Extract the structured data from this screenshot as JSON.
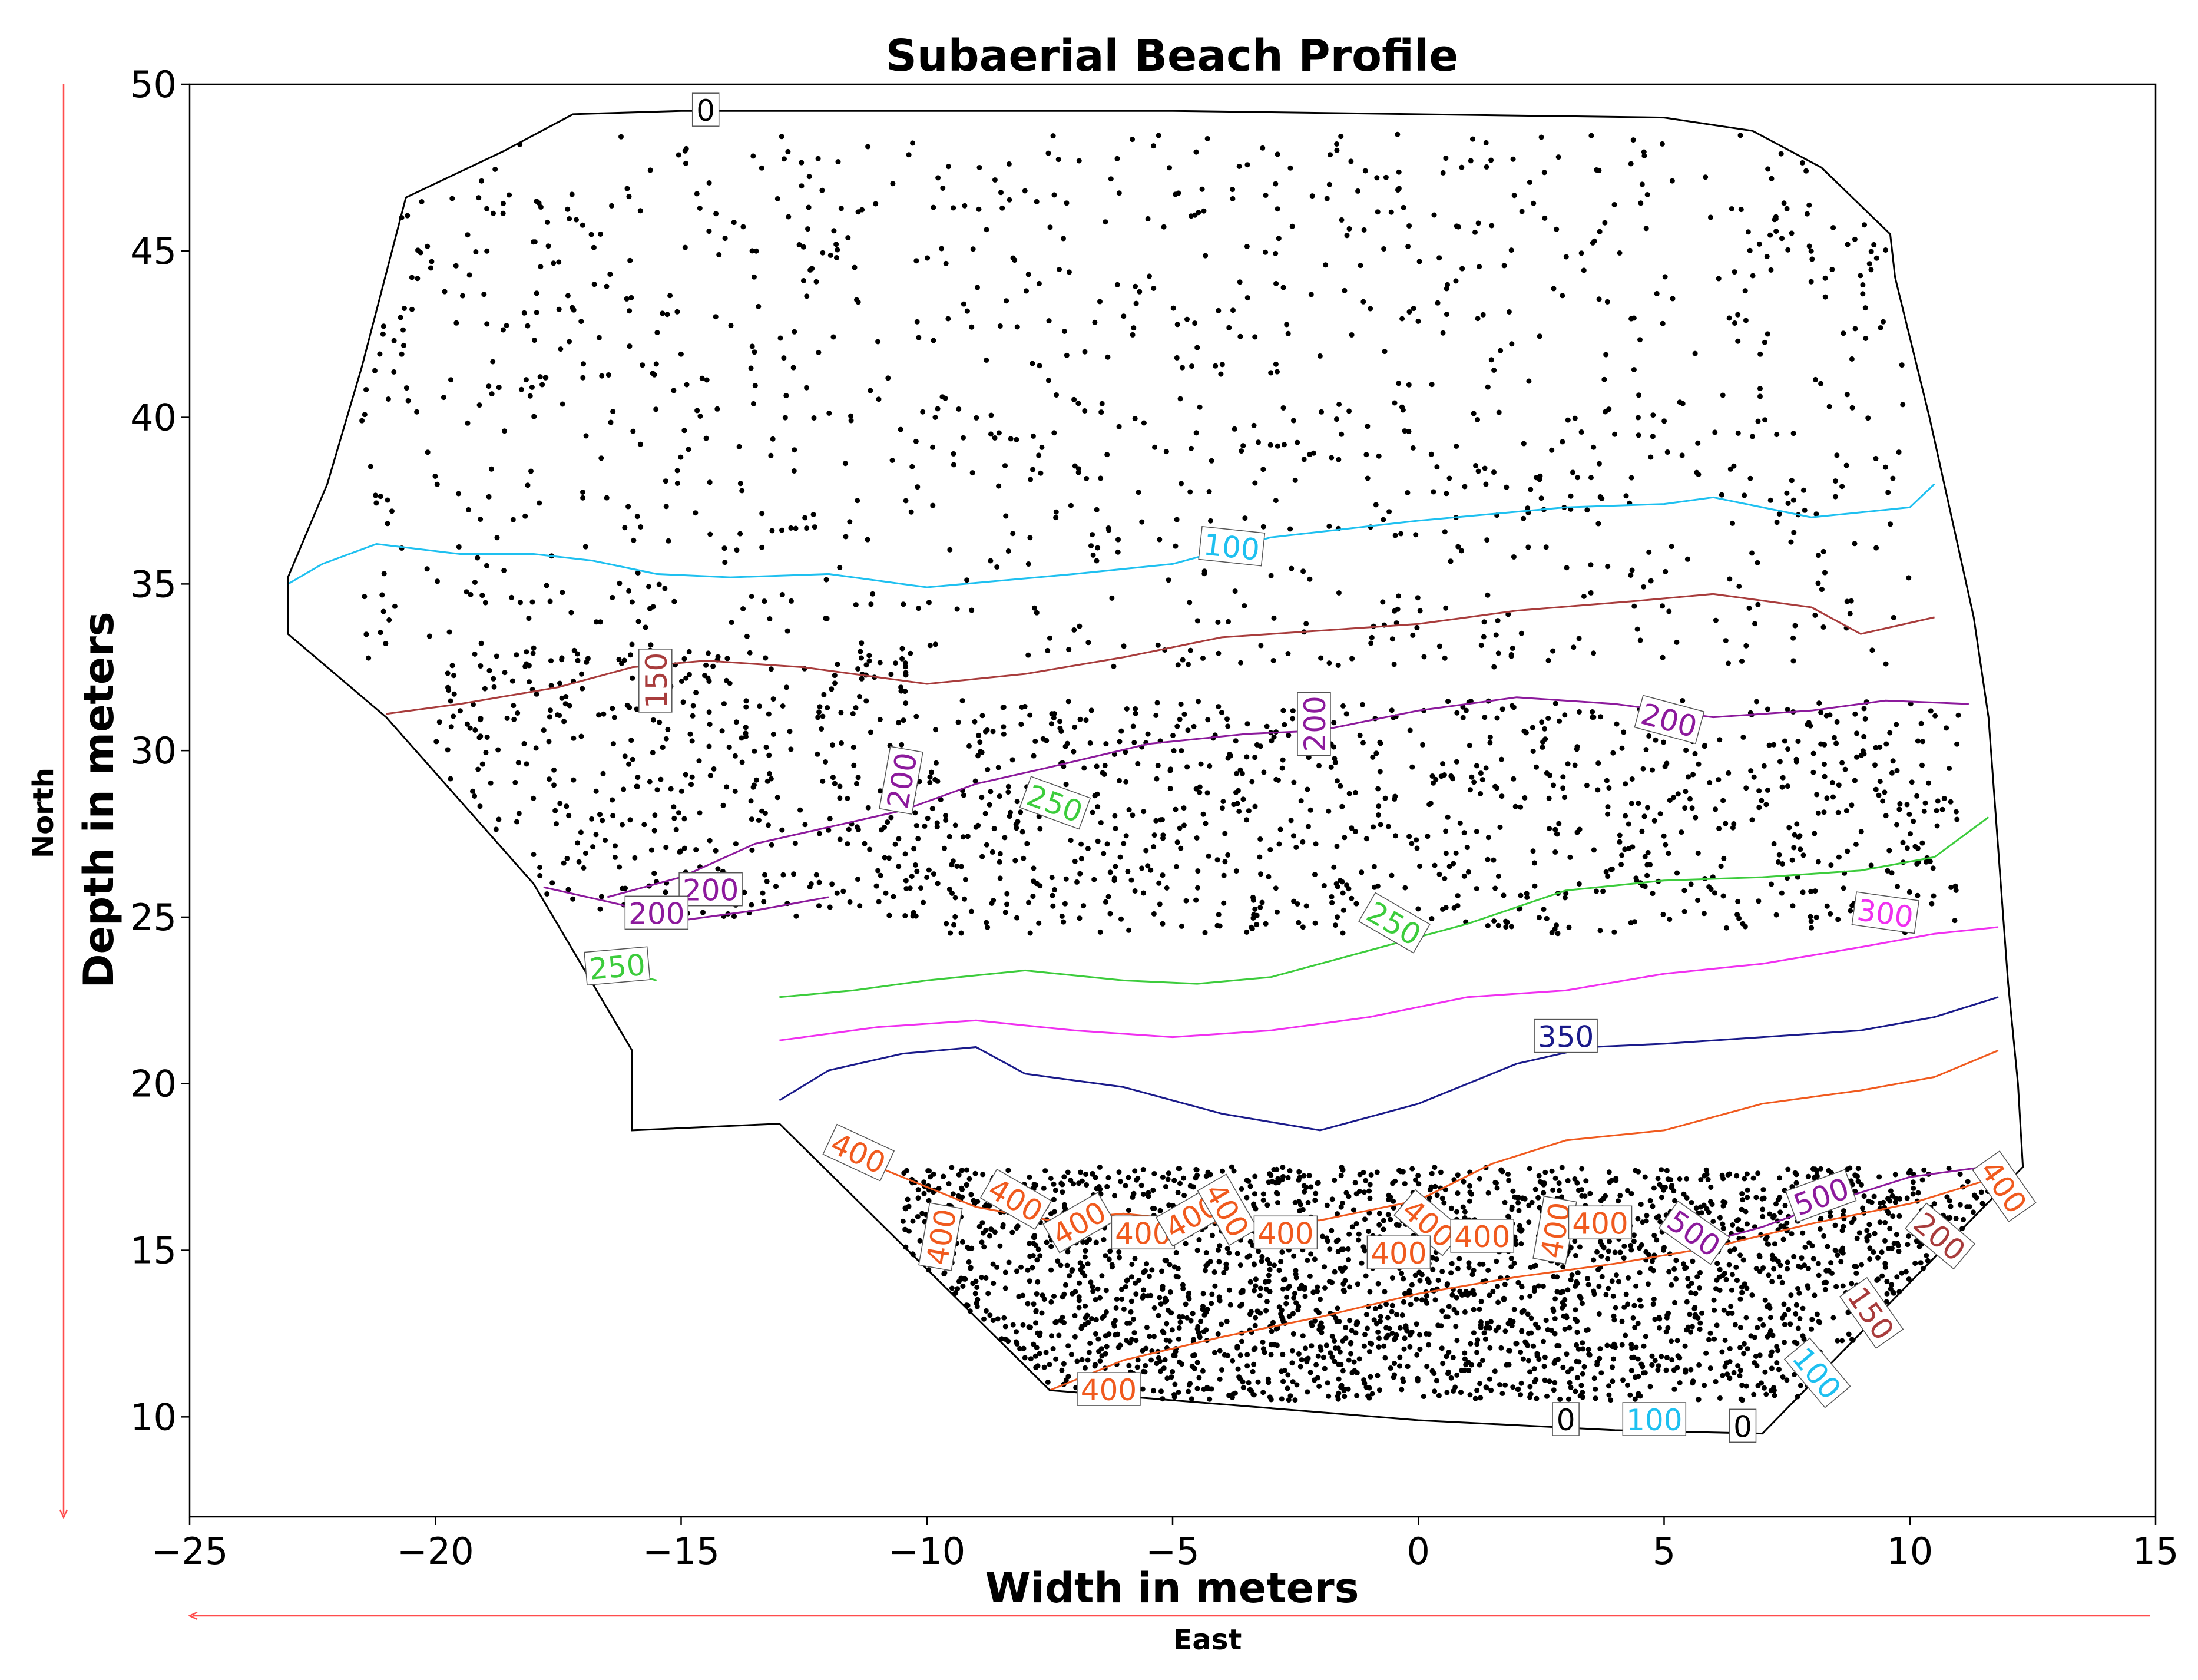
{
  "chart_data": {
    "type": "contour",
    "title": "Subaerial Beach Profile",
    "xlabel": "Width in meters",
    "ylabel": "Depth in meters",
    "xlim": [
      -25,
      15
    ],
    "ylim": [
      7,
      50
    ],
    "xticks": [
      -25,
      -20,
      -15,
      -10,
      -5,
      0,
      5,
      10,
      15
    ],
    "yticks": [
      10,
      15,
      20,
      25,
      30,
      35,
      40,
      45,
      50
    ],
    "xtick_labels": [
      "−25",
      "−20",
      "−15",
      "−10",
      "−5",
      "0",
      "5",
      "10",
      "15"
    ],
    "ytick_labels": [
      "10",
      "15",
      "20",
      "25",
      "30",
      "35",
      "40",
      "45",
      "50"
    ],
    "direction_labels": {
      "east": "East",
      "north": "North"
    },
    "colors": {
      "boundary": "#000000",
      "c100": "#1ec0f0",
      "c150": "#a83c3c",
      "c200": "#8c1a9c",
      "c250": "#3ccc3c",
      "c300": "#f030f0",
      "c350": "#1a1a8a",
      "c400": "#f05a1e",
      "arrows": "#ff4d4d"
    },
    "boundary": {
      "level": 0,
      "points": [
        [
          -23,
          33.5
        ],
        [
          -23,
          35.2
        ],
        [
          -22.2,
          38
        ],
        [
          -21.5,
          41.5
        ],
        [
          -20.6,
          46.6
        ],
        [
          -18.6,
          48
        ],
        [
          -17.2,
          49.1
        ],
        [
          -15,
          49.2
        ],
        [
          -5,
          49.2
        ],
        [
          5,
          49
        ],
        [
          6.8,
          48.6
        ],
        [
          8.2,
          47.5
        ],
        [
          9.6,
          45.5
        ],
        [
          9.7,
          44.2
        ],
        [
          10.4,
          40
        ],
        [
          11,
          36
        ],
        [
          11.3,
          34
        ],
        [
          11.6,
          31
        ],
        [
          11.8,
          27
        ],
        [
          11.9,
          25
        ],
        [
          12,
          23
        ],
        [
          12.2,
          20
        ],
        [
          12.3,
          17.5
        ],
        [
          7,
          9.5
        ],
        [
          4,
          9.6
        ],
        [
          0,
          9.9
        ],
        [
          -7.5,
          10.8
        ],
        [
          -13,
          18.8
        ],
        [
          -16,
          18.6
        ],
        [
          -16,
          21
        ],
        [
          -18,
          26
        ],
        [
          -21,
          31
        ],
        [
          -23,
          33.5
        ]
      ]
    },
    "contours": [
      {
        "level": 100,
        "color_key": "c100",
        "points": [
          [
            -23,
            35
          ],
          [
            -22.3,
            35.6
          ],
          [
            -21.2,
            36.2
          ],
          [
            -19.5,
            35.9
          ],
          [
            -18,
            35.9
          ],
          [
            -16.8,
            35.7
          ],
          [
            -15.5,
            35.3
          ],
          [
            -14,
            35.2
          ],
          [
            -12,
            35.3
          ],
          [
            -10,
            34.9
          ],
          [
            -7,
            35.3
          ],
          [
            -5,
            35.6
          ],
          [
            -3,
            36.4
          ],
          [
            0,
            36.9
          ],
          [
            3,
            37.3
          ],
          [
            5,
            37.4
          ],
          [
            6,
            37.6
          ],
          [
            8,
            37.0
          ],
          [
            10,
            37.3
          ],
          [
            10.5,
            38
          ]
        ]
      },
      {
        "level": 150,
        "color_key": "c150",
        "points": [
          [
            -21,
            31.1
          ],
          [
            -19.5,
            31.4
          ],
          [
            -17.5,
            31.9
          ],
          [
            -16,
            32.5
          ],
          [
            -14.5,
            32.7
          ],
          [
            -12.5,
            32.5
          ],
          [
            -10,
            32.0
          ],
          [
            -8,
            32.3
          ],
          [
            -6,
            32.8
          ],
          [
            -4,
            33.4
          ],
          [
            -2,
            33.6
          ],
          [
            0,
            33.8
          ],
          [
            2,
            34.2
          ],
          [
            4.5,
            34.5
          ],
          [
            6,
            34.7
          ],
          [
            8,
            34.3
          ],
          [
            9,
            33.5
          ],
          [
            10.5,
            34
          ]
        ]
      },
      {
        "level": 200,
        "color_key": "c200",
        "points": [
          [
            -16.5,
            25.6
          ],
          [
            -15,
            26.2
          ],
          [
            -13.5,
            27.2
          ],
          [
            -12,
            27.7
          ],
          [
            -10.5,
            28.2
          ],
          [
            -9,
            29
          ],
          [
            -7.5,
            29.5
          ],
          [
            -5.5,
            30.2
          ],
          [
            -3.5,
            30.5
          ],
          [
            -2,
            30.6
          ],
          [
            0,
            31.2
          ],
          [
            2,
            31.6
          ],
          [
            4,
            31.4
          ],
          [
            6,
            31.0
          ],
          [
            8,
            31.2
          ],
          [
            9.5,
            31.5
          ],
          [
            11.2,
            31.4
          ]
        ]
      },
      {
        "level": 200,
        "color_key": "c200",
        "points": [
          [
            -17.8,
            25.9
          ],
          [
            -16.3,
            25.4
          ],
          [
            -15,
            24.9
          ],
          [
            -13.5,
            25.2
          ],
          [
            -12,
            25.6
          ]
        ]
      },
      {
        "level": 250,
        "color_key": "c250",
        "points": [
          [
            -13,
            22.6
          ],
          [
            -11.5,
            22.8
          ],
          [
            -10,
            23.1
          ],
          [
            -8,
            23.4
          ],
          [
            -6,
            23.1
          ],
          [
            -4.5,
            23.0
          ],
          [
            -3,
            23.2
          ],
          [
            -1,
            24.0
          ],
          [
            1,
            24.8
          ],
          [
            3,
            25.8
          ],
          [
            5,
            26.1
          ],
          [
            7,
            26.2
          ],
          [
            9,
            26.4
          ],
          [
            10.5,
            26.8
          ],
          [
            11.6,
            28
          ]
        ]
      },
      {
        "level": 250,
        "color_key": "c250",
        "points": [
          [
            -16.5,
            23.5
          ],
          [
            -15.5,
            23.1
          ]
        ]
      },
      {
        "level": 300,
        "color_key": "c300",
        "points": [
          [
            -13,
            21.3
          ],
          [
            -11,
            21.7
          ],
          [
            -9,
            21.9
          ],
          [
            -7,
            21.6
          ],
          [
            -5,
            21.4
          ],
          [
            -3,
            21.6
          ],
          [
            -1,
            22.0
          ],
          [
            1,
            22.6
          ],
          [
            3,
            22.8
          ],
          [
            5,
            23.3
          ],
          [
            7,
            23.6
          ],
          [
            9,
            24.1
          ],
          [
            10.5,
            24.5
          ],
          [
            11.8,
            24.7
          ]
        ]
      },
      {
        "level": 350,
        "color_key": "c350",
        "points": [
          [
            -13,
            19.5
          ],
          [
            -12,
            20.4
          ],
          [
            -10.5,
            20.9
          ],
          [
            -9,
            21.1
          ],
          [
            -8,
            20.3
          ],
          [
            -6,
            19.9
          ],
          [
            -4,
            19.1
          ],
          [
            -2,
            18.6
          ],
          [
            0,
            19.4
          ],
          [
            2,
            20.6
          ],
          [
            3.5,
            21.1
          ],
          [
            5,
            21.2
          ],
          [
            7,
            21.4
          ],
          [
            9,
            21.6
          ],
          [
            10.5,
            22.0
          ],
          [
            11.8,
            22.6
          ]
        ]
      },
      {
        "level": 400,
        "color_key": "c400",
        "points": [
          [
            -11.5,
            17.8
          ],
          [
            -10.5,
            17.2
          ],
          [
            -9,
            16.3
          ],
          [
            -7.5,
            15.9
          ],
          [
            -6,
            16.1
          ],
          [
            -4,
            15.8
          ],
          [
            -2,
            15.9
          ],
          [
            0,
            16.5
          ],
          [
            1.5,
            17.6
          ],
          [
            3,
            18.3
          ],
          [
            5,
            18.6
          ],
          [
            7,
            19.4
          ],
          [
            9,
            19.8
          ],
          [
            10.5,
            20.2
          ],
          [
            11.8,
            21.0
          ]
        ]
      },
      {
        "level": 400,
        "color_key": "c400",
        "points": [
          [
            -7.5,
            10.8
          ],
          [
            -6,
            11.7
          ],
          [
            -4,
            12.4
          ],
          [
            -2,
            13.0
          ],
          [
            0,
            13.7
          ],
          [
            2,
            14.2
          ],
          [
            4,
            14.6
          ],
          [
            6,
            15.1
          ],
          [
            8,
            15.8
          ],
          [
            10,
            16.4
          ],
          [
            12,
            17.3
          ]
        ]
      },
      {
        "level": 500,
        "color_key": "c200",
        "points": [
          [
            5.5,
            15.1
          ],
          [
            7,
            15.7
          ],
          [
            8.5,
            16.5
          ],
          [
            10,
            17.2
          ],
          [
            11.5,
            17.5
          ]
        ]
      }
    ],
    "contour_labels": [
      {
        "text": "0",
        "x": -14.5,
        "y": 49.2,
        "color_key": "boundary",
        "angle": 0
      },
      {
        "text": "100",
        "x": -3.8,
        "y": 36.1,
        "color_key": "c100",
        "angle": -6
      },
      {
        "text": "150",
        "x": -15.5,
        "y": 32.1,
        "color_key": "c150",
        "angle": 90
      },
      {
        "text": "200",
        "x": -2.1,
        "y": 30.8,
        "color_key": "c200",
        "angle": 90
      },
      {
        "text": "200",
        "x": 5.1,
        "y": 30.9,
        "color_key": "c200",
        "angle": -15
      },
      {
        "text": "200",
        "x": -10.5,
        "y": 29.1,
        "color_key": "c200",
        "angle": 80
      },
      {
        "text": "250",
        "x": -7.4,
        "y": 28.4,
        "color_key": "c250",
        "angle": -20
      },
      {
        "text": "200",
        "x": -14.4,
        "y": 25.8,
        "color_key": "c200",
        "angle": 0
      },
      {
        "text": "200",
        "x": -15.5,
        "y": 25.1,
        "color_key": "c200",
        "angle": 0
      },
      {
        "text": "250",
        "x": -16.3,
        "y": 23.5,
        "color_key": "c250",
        "angle": 5
      },
      {
        "text": "250",
        "x": -0.5,
        "y": 24.8,
        "color_key": "c250",
        "angle": -30
      },
      {
        "text": "300",
        "x": 9.5,
        "y": 25.1,
        "color_key": "c300",
        "angle": -8
      },
      {
        "text": "350",
        "x": 3.0,
        "y": 21.4,
        "color_key": "c350",
        "angle": 0
      },
      {
        "text": "400",
        "x": -11.4,
        "y": 17.9,
        "color_key": "c400",
        "angle": -25
      },
      {
        "text": "400",
        "x": -8.2,
        "y": 16.5,
        "color_key": "c400",
        "angle": -30
      },
      {
        "text": "400",
        "x": -9.7,
        "y": 15.4,
        "color_key": "c400",
        "angle": 80
      },
      {
        "text": "400",
        "x": -6.9,
        "y": 15.8,
        "color_key": "c400",
        "angle": 30
      },
      {
        "text": "400",
        "x": -5.6,
        "y": 15.5,
        "color_key": "c400",
        "angle": 0
      },
      {
        "text": "400",
        "x": -4.6,
        "y": 16.0,
        "color_key": "c400",
        "angle": 30
      },
      {
        "text": "400",
        "x": -3.9,
        "y": 16.2,
        "color_key": "c400",
        "angle": -60
      },
      {
        "text": "400",
        "x": -2.7,
        "y": 15.5,
        "color_key": "c400",
        "angle": 0
      },
      {
        "text": "400",
        "x": 0.2,
        "y": 15.8,
        "color_key": "c400",
        "angle": -40
      },
      {
        "text": "400",
        "x": 1.3,
        "y": 15.4,
        "color_key": "c400",
        "angle": 0
      },
      {
        "text": "400",
        "x": -0.4,
        "y": 14.9,
        "color_key": "c400",
        "angle": 0
      },
      {
        "text": "400",
        "x": 2.8,
        "y": 15.6,
        "color_key": "c400",
        "angle": 80
      },
      {
        "text": "400",
        "x": 3.7,
        "y": 15.8,
        "color_key": "c400",
        "angle": 0
      },
      {
        "text": "400",
        "x": -6.3,
        "y": 10.8,
        "color_key": "c400",
        "angle": 0
      },
      {
        "text": "400",
        "x": 11.9,
        "y": 16.9,
        "color_key": "c400",
        "angle": -55
      },
      {
        "text": "500",
        "x": 5.6,
        "y": 15.5,
        "color_key": "c200",
        "angle": -35
      },
      {
        "text": "500",
        "x": 8.2,
        "y": 16.6,
        "color_key": "c200",
        "angle": 20
      },
      {
        "text": "200",
        "x": 10.6,
        "y": 15.4,
        "color_key": "c150",
        "angle": -40
      },
      {
        "text": "150",
        "x": 9.2,
        "y": 13.1,
        "color_key": "c150",
        "angle": -55
      },
      {
        "text": "100",
        "x": 8.1,
        "y": 11.3,
        "color_key": "c100",
        "angle": -50
      },
      {
        "text": "100",
        "x": 4.8,
        "y": 9.9,
        "color_key": "c100",
        "angle": 0
      },
      {
        "text": "0",
        "x": 3.0,
        "y": 9.9,
        "color_key": "boundary",
        "angle": 0
      },
      {
        "text": "0",
        "x": 6.6,
        "y": 9.7,
        "color_key": "boundary",
        "angle": 0
      }
    ],
    "scatter_regions": [
      {
        "x": [
          -21.5,
          10
        ],
        "y": [
          32.5,
          48.5
        ],
        "count": 1100
      },
      {
        "x": [
          -20,
          -10
        ],
        "y": [
          25,
          33
        ],
        "count": 420
      },
      {
        "x": [
          -10,
          11
        ],
        "y": [
          24.5,
          31.5
        ],
        "count": 900
      },
      {
        "x": [
          -10.5,
          12
        ],
        "y": [
          10.5,
          17.5
        ],
        "count": 2400
      }
    ]
  }
}
